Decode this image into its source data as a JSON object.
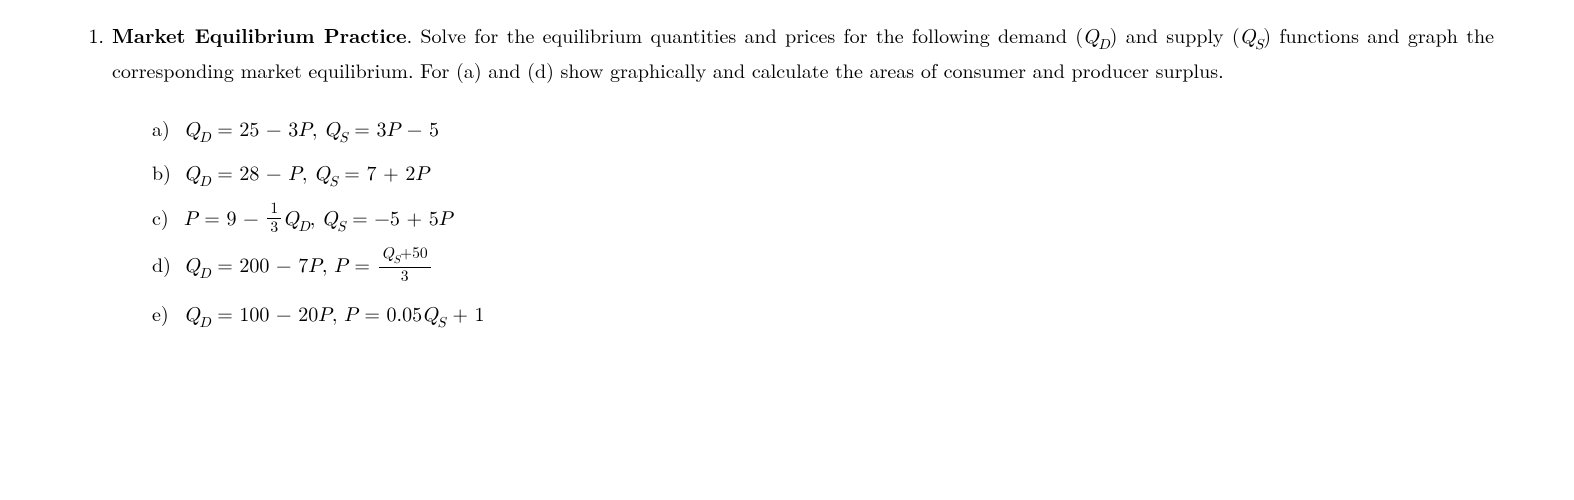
{
  "problem": {
    "number": "1.",
    "title": "Market Equilibrium Practice",
    "intro_rest": ". Solve for the equilibrium quantities and prices for the following demand (",
    "qd": "Q",
    "qd_sub": "D",
    "intro_mid1": ") and supply (",
    "qs": "Q",
    "qs_sub": "S",
    "intro_mid2": ") functions and graph the corresponding market equilibrium. For (a) and (d) show graphically and calculate the areas of consumer and producer surplus."
  },
  "subparts": {
    "a": {
      "label": "a)",
      "lhs1": "Q",
      "sub1": "D",
      "eq1": " = 25 − 3",
      "p1": "P",
      "sep": ", ",
      "lhs2": "Q",
      "sub2": "S",
      "eq2": " = 3",
      "p2": "P",
      "tail": " − 5"
    },
    "b": {
      "label": "b)",
      "lhs1": "Q",
      "sub1": "D",
      "eq1": " = 28 − ",
      "p1": "P",
      "sep": ", ",
      "lhs2": "Q",
      "sub2": "S",
      "eq2": " = 7 + 2",
      "p2": "P"
    },
    "c": {
      "label": "c)",
      "p_lhs": "P",
      "eq1": " = 9 − ",
      "frac_num": "1",
      "frac_den": "3",
      "q1": "Q",
      "sub1": "D",
      "sep": ", ",
      "q2": "Q",
      "sub2": "S",
      "eq2": " = −5 + 5",
      "p2": "P"
    },
    "d": {
      "label": "d)",
      "lhs1": "Q",
      "sub1": "D",
      "eq1": " = 200 − 7",
      "p1": "P",
      "sep": ", ",
      "p_lhs": "P",
      "eq2": " = ",
      "frac_num_q": "Q",
      "frac_num_sub": "S",
      "frac_num_tail": "+50",
      "frac_den": "3"
    },
    "e": {
      "label": "e)",
      "lhs1": "Q",
      "sub1": "D",
      "eq1": " = 100 − 20",
      "p1": "P",
      "sep": ", ",
      "p_lhs": "P",
      "eq2": " = 0.05",
      "q2": "Q",
      "sub2": "S",
      "tail": " + 1"
    }
  }
}
